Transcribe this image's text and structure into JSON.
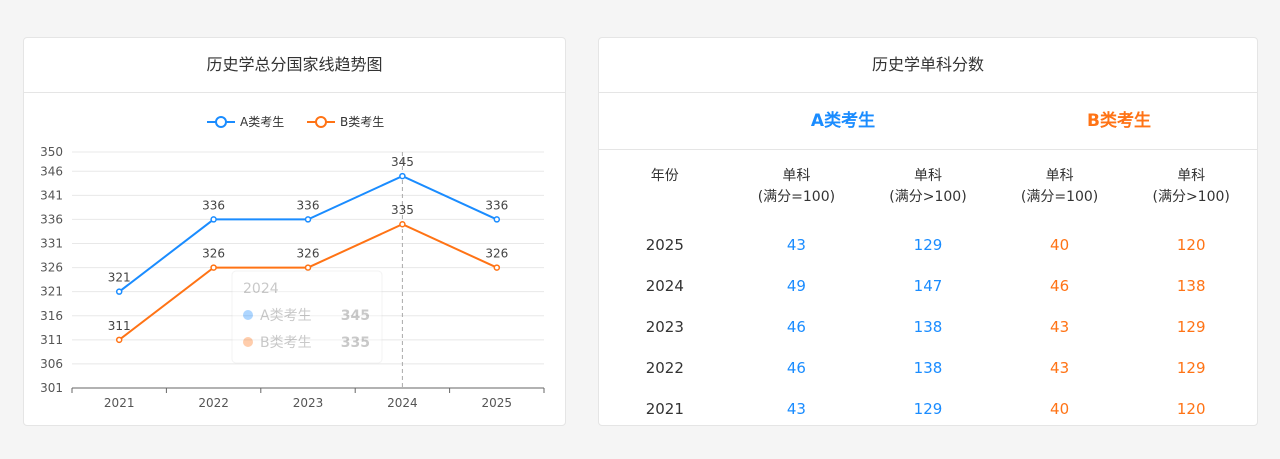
{
  "left_card": {
    "title": "历史学总分国家线趋势图"
  },
  "chart_data": {
    "type": "line",
    "title": "历史学总分国家线趋势图",
    "categories": [
      "2021",
      "2022",
      "2023",
      "2024",
      "2025"
    ],
    "series": [
      {
        "name": "A类考生",
        "color": "#1a8cff",
        "values": [
          321,
          336,
          336,
          345,
          336
        ]
      },
      {
        "name": "B类考生",
        "color": "#ff7315",
        "values": [
          311,
          326,
          326,
          335,
          326
        ]
      }
    ],
    "yticks": [
      301,
      306,
      311,
      316,
      321,
      326,
      331,
      336,
      341,
      346,
      350
    ],
    "ylim": [
      301,
      350
    ],
    "legend_position": "top",
    "grid": true,
    "tooltip": {
      "category": "2024",
      "rows": [
        {
          "name": "A类考生",
          "value": "345"
        },
        {
          "name": "B类考生",
          "value": "335"
        }
      ]
    }
  },
  "right_card": {
    "title": "历史学单科分数",
    "group_a": "A类考生",
    "group_b": "B类考生",
    "headers": {
      "year": "年份",
      "col1_top": "单科",
      "col1_bottom": "(满分=100)",
      "col2_top": "单科",
      "col2_bottom": "(满分>100)",
      "col3_top": "单科",
      "col3_bottom": "(满分=100)",
      "col4_top": "单科",
      "col4_bottom": "(满分>100)"
    },
    "rows": [
      {
        "year": "2025",
        "a100": "43",
        "aover": "129",
        "b100": "40",
        "bover": "120"
      },
      {
        "year": "2024",
        "a100": "49",
        "aover": "147",
        "b100": "46",
        "bover": "138"
      },
      {
        "year": "2023",
        "a100": "46",
        "aover": "138",
        "b100": "43",
        "bover": "129"
      },
      {
        "year": "2022",
        "a100": "46",
        "aover": "138",
        "b100": "43",
        "bover": "129"
      },
      {
        "year": "2021",
        "a100": "43",
        "aover": "129",
        "b100": "40",
        "bover": "120"
      }
    ]
  }
}
